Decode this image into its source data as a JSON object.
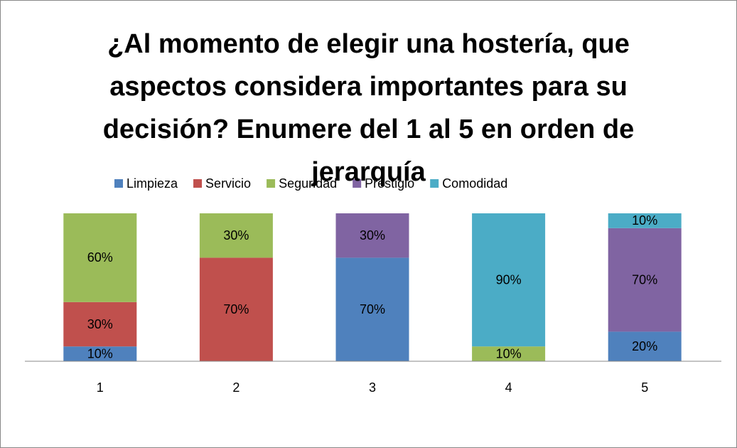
{
  "chart_data": {
    "type": "stacked_bar",
    "title": "¿Al momento de elegir una hostería, que aspectos considera importantes para su decisión? Enumere del 1 al 5 en orden de jerarquía",
    "categories": [
      "1",
      "2",
      "3",
      "4",
      "5"
    ],
    "series": [
      {
        "name": "Limpieza",
        "color": "#4f81bd",
        "values": [
          10,
          0,
          70,
          0,
          20
        ],
        "value_labels": [
          "10%",
          null,
          "70%",
          null,
          "20%"
        ]
      },
      {
        "name": "Servicio",
        "color": "#c0504d",
        "values": [
          30,
          70,
          0,
          0,
          0
        ],
        "value_labels": [
          "30%",
          "70%",
          null,
          null,
          null
        ]
      },
      {
        "name": "Seguridad",
        "color": "#9bbb59",
        "values": [
          60,
          30,
          0,
          10,
          0
        ],
        "value_labels": [
          "60%",
          "30%",
          null,
          "10%",
          null
        ]
      },
      {
        "name": "Prestigio",
        "color": "#8064a2",
        "values": [
          0,
          0,
          30,
          0,
          70
        ],
        "value_labels": [
          null,
          null,
          "30%",
          null,
          "70%"
        ]
      },
      {
        "name": "Comodidad",
        "color": "#4bacc6",
        "values": [
          0,
          0,
          0,
          90,
          10
        ],
        "value_labels": [
          null,
          null,
          null,
          "90%",
          "10%"
        ]
      }
    ],
    "legend": "top"
  }
}
